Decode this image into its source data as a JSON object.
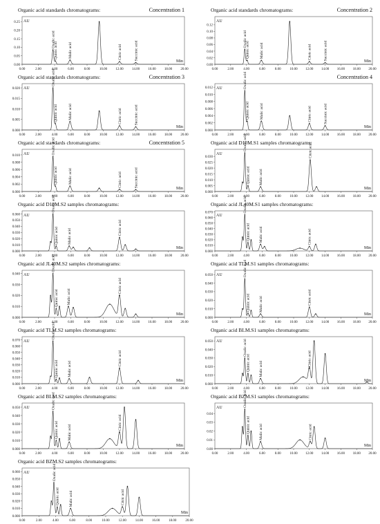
{
  "chart_data": [
    {
      "type": "line",
      "title": "Organic acid standards chromatograms:",
      "subtitle": "Concentration 1",
      "ylabel": "AU",
      "xlabel": "Min",
      "xlim": [
        0,
        20
      ],
      "ylim": [
        0,
        0.28
      ],
      "xticks": [
        "0.00",
        "2.00",
        "4.00",
        "6.00",
        "8.00",
        "10.00",
        "12.00",
        "14.00",
        "16.00",
        "18.00",
        "20.00"
      ],
      "yticks": [
        "0.00",
        "0.05",
        "0.10",
        "0.15",
        "0.20",
        "0.25"
      ],
      "peaks": [
        {
          "name": "Oxalic acid",
          "x": 3.8,
          "y": 0.085
        },
        {
          "name": "Quinic acid",
          "x": 4.1,
          "y": 0.02
        },
        {
          "name": "Malic acid",
          "x": 5.9,
          "y": 0.025
        },
        {
          "name": "",
          "x": 9.5,
          "y": 0.25
        },
        {
          "name": "Citric acid",
          "x": 12.0,
          "y": 0.015
        },
        {
          "name": "Succinic acid",
          "x": 14.0,
          "y": 0.01
        }
      ]
    },
    {
      "type": "line",
      "title": "Organic acid standards chromatograms:",
      "subtitle": "Concentration 2",
      "ylabel": "AU",
      "xlabel": "Min",
      "xlim": [
        0,
        20
      ],
      "ylim": [
        0,
        0.145
      ],
      "xticks": [
        "0.00",
        "2.00",
        "4.00",
        "6.00",
        "8.00",
        "10.00",
        "12.00",
        "14.00",
        "16.00",
        "18.00",
        "20.00"
      ],
      "yticks": [
        "0.00",
        "0.02",
        "0.04",
        "0.06",
        "0.08",
        "0.10",
        "0.12"
      ],
      "peaks": [
        {
          "name": "Oxalic acid",
          "x": 3.8,
          "y": 0.045
        },
        {
          "name": "Quinic acid",
          "x": 4.1,
          "y": 0.012
        },
        {
          "name": "Malic acid",
          "x": 5.9,
          "y": 0.012
        },
        {
          "name": "",
          "x": 9.5,
          "y": 0.13
        },
        {
          "name": "Citric acid",
          "x": 12.0,
          "y": 0.008
        },
        {
          "name": "Succinic acid",
          "x": 14.0,
          "y": 0.005
        }
      ]
    },
    {
      "type": "line",
      "title": "Organic acid standards chromatograms:",
      "subtitle": "Concentration 3",
      "ylabel": "AU",
      "xlabel": "Min",
      "xlim": [
        0,
        20
      ],
      "ylim": [
        0,
        0.022
      ],
      "xticks": [
        "0.00",
        "2.00",
        "4.00",
        "6.00",
        "8.00",
        "10.00",
        "12.00",
        "14.00",
        "16.00",
        "18.00",
        "20.00"
      ],
      "yticks": [
        "0.000",
        "0.005",
        "0.010",
        "0.015",
        "0.020"
      ],
      "peaks": [
        {
          "name": "Oxalic acid",
          "x": 3.8,
          "y": 0.02
        },
        {
          "name": "Quinic acid",
          "x": 4.1,
          "y": 0.003
        },
        {
          "name": "Malic acid",
          "x": 5.9,
          "y": 0.004
        },
        {
          "name": "",
          "x": 9.5,
          "y": 0.009
        },
        {
          "name": "Citric acid",
          "x": 12.0,
          "y": 0.002
        },
        {
          "name": "Succinic acid",
          "x": 14.0,
          "y": 0.0015
        }
      ]
    },
    {
      "type": "line",
      "title": "",
      "subtitle": "Concentration 4",
      "ylabel": "AU",
      "xlabel": "Min",
      "xlim": [
        0,
        20
      ],
      "ylim": [
        0,
        0.013
      ],
      "xticks": [
        "0.00",
        "2.00",
        "4.00",
        "6.00",
        "8.00",
        "10.00",
        "12.00",
        "14.00",
        "16.00",
        "18.00",
        "20.00"
      ],
      "yticks": [
        "0.000",
        "0.002",
        "0.004",
        "0.006",
        "0.008",
        "0.010",
        "0.012"
      ],
      "peaks": [
        {
          "name": "Oxalic acid",
          "x": 3.8,
          "y": 0.011
        },
        {
          "name": "Quinic acid",
          "x": 4.1,
          "y": 0.0025
        },
        {
          "name": "Malic acid",
          "x": 5.9,
          "y": 0.0025
        },
        {
          "name": "",
          "x": 9.5,
          "y": 0.004
        },
        {
          "name": "Citric acid",
          "x": 12.0,
          "y": 0.0018
        },
        {
          "name": "Succinic acid",
          "x": 14.0,
          "y": 0.0012
        }
      ]
    },
    {
      "type": "line",
      "title": "Organic acid standards chromatograms:",
      "subtitle": "Concentration 5",
      "ylabel": "AU",
      "xlabel": "Min",
      "xlim": [
        0,
        20
      ],
      "ylim": [
        0,
        0.0115
      ],
      "xticks": [
        "0.00",
        "2.00",
        "4.00",
        "6.00",
        "8.00",
        "10.00",
        "12.00",
        "14.00",
        "16.00",
        "18.00",
        "20.00"
      ],
      "yticks": [
        "0.000",
        "0.002",
        "0.004",
        "0.006",
        "0.008",
        "0.010"
      ],
      "peaks": [
        {
          "name": "Oxalic acid",
          "x": 3.8,
          "y": 0.0095
        },
        {
          "name": "Quinic acid",
          "x": 4.1,
          "y": 0.0015
        },
        {
          "name": "Malic acid",
          "x": 5.9,
          "y": 0.0015
        },
        {
          "name": "",
          "x": 9.5,
          "y": 0.0009
        },
        {
          "name": "Citric acid",
          "x": 12.0,
          "y": 0.0006
        },
        {
          "name": "Succinic acid",
          "x": 14.0,
          "y": 0.0005
        }
      ]
    },
    {
      "type": "line",
      "title": "Organic acid D10M.S1 samples chromatograms:",
      "subtitle": "",
      "ylabel": "AU",
      "xlabel": "Min",
      "xlim": [
        0,
        20
      ],
      "ylim": [
        0,
        0.036
      ],
      "xticks": [
        "0.00",
        "2.00",
        "4.00",
        "6.00",
        "8.00",
        "10.00",
        "12.00",
        "14.00",
        "16.00",
        "18.00",
        "20.00"
      ],
      "yticks": [
        "0.000",
        "0.005",
        "0.010",
        "0.015",
        "0.020",
        "0.025",
        "0.030"
      ],
      "peaks": [
        {
          "name": "",
          "x": 3.5,
          "y": 0.008
        },
        {
          "name": "Oxalic acid",
          "x": 3.8,
          "y": 0.033
        },
        {
          "name": "Quinic acid",
          "x": 4.2,
          "y": 0.005
        },
        {
          "name": "Malic acid",
          "x": 5.8,
          "y": 0.004
        },
        {
          "name": "Citric acid",
          "x": 12.1,
          "y": 0.027
        },
        {
          "name": "",
          "x": 12.9,
          "y": 0.004
        }
      ]
    },
    {
      "type": "line",
      "title": "Organic acid D10M.S2 samples chromatograms:",
      "subtitle": "",
      "ylabel": "AU",
      "xlabel": "Min",
      "xlim": [
        0,
        20
      ],
      "ylim": [
        0,
        0.065
      ],
      "xticks": [
        "0.00",
        "2.00",
        "4.00",
        "6.00",
        "8.00",
        "10.00",
        "12.00",
        "14.00",
        "16.00",
        "18.00",
        "20.00"
      ],
      "yticks": [
        "0.000",
        "0.010",
        "0.020",
        "0.030",
        "0.040",
        "0.050",
        "0.060"
      ],
      "peaks": [
        {
          "name": "",
          "x": 3.5,
          "y": 0.015
        },
        {
          "name": "Oxalic acid",
          "x": 3.8,
          "y": 0.06
        },
        {
          "name": "Quinic acid",
          "x": 4.2,
          "y": 0.008
        },
        {
          "name": "Malic acid",
          "x": 5.8,
          "y": 0.008
        },
        {
          "name": "",
          "x": 6.3,
          "y": 0.006
        },
        {
          "name": "",
          "x": 8.3,
          "y": 0.005
        },
        {
          "name": "Citric acid",
          "x": 12.0,
          "y": 0.022
        },
        {
          "name": "",
          "x": 12.7,
          "y": 0.01
        },
        {
          "name": "",
          "x": 14.0,
          "y": 0.003
        }
      ]
    },
    {
      "type": "line",
      "title": "Organic acid JL40M.S1 samples chromatograms:",
      "subtitle": "",
      "ylabel": "AU",
      "xlabel": "Min",
      "xlim": [
        0,
        20
      ],
      "ylim": [
        0,
        0.072
      ],
      "xticks": [
        "0.00",
        "2.00",
        "4.00",
        "6.00",
        "8.00",
        "10.00",
        "12.00",
        "14.00",
        "16.00",
        "18.00",
        "20.00"
      ],
      "yticks": [
        "0.000",
        "0.010",
        "0.020",
        "0.030",
        "0.040",
        "0.050",
        "0.060",
        "0.070"
      ],
      "peaks": [
        {
          "name": "",
          "x": 3.5,
          "y": 0.025
        },
        {
          "name": "Oxalic acid",
          "x": 3.8,
          "y": 0.065
        },
        {
          "name": "Quinic acid",
          "x": 4.2,
          "y": 0.015
        },
        {
          "name": "",
          "x": 4.6,
          "y": 0.02
        },
        {
          "name": "Malic acid",
          "x": 5.8,
          "y": 0.012
        },
        {
          "name": "",
          "x": 6.3,
          "y": 0.008
        },
        {
          "name": "",
          "x": 10.8,
          "y": 0.005
        },
        {
          "name": "Citric acid",
          "x": 12.0,
          "y": 0.008
        },
        {
          "name": "",
          "x": 12.8,
          "y": 0.012
        }
      ]
    },
    {
      "type": "line",
      "title": "Organic acid JL40M.S2 samples chromatograms:",
      "subtitle": "",
      "ylabel": "AU",
      "xlabel": "Min",
      "xlim": [
        0,
        20
      ],
      "ylim": [
        0,
        0.043
      ],
      "xticks": [
        "0.00",
        "2.00",
        "4.00",
        "6.00",
        "8.00",
        "10.00",
        "12.00",
        "14.00",
        "16.00",
        "18.00",
        "20.00"
      ],
      "yticks": [
        "0.000",
        "0.010",
        "0.020",
        "0.030",
        "0.040"
      ],
      "peaks": [
        {
          "name": "",
          "x": 3.5,
          "y": 0.02
        },
        {
          "name": "Oxalic acid",
          "x": 3.8,
          "y": 0.04
        },
        {
          "name": "Quinic acid",
          "x": 4.2,
          "y": 0.008
        },
        {
          "name": "",
          "x": 4.6,
          "y": 0.01
        },
        {
          "name": "Malic acid",
          "x": 5.7,
          "y": 0.01
        },
        {
          "name": "",
          "x": 6.3,
          "y": 0.009
        },
        {
          "name": "",
          "x": 10.8,
          "y": 0.012
        },
        {
          "name": "Citric acid",
          "x": 12.0,
          "y": 0.02
        },
        {
          "name": "",
          "x": 12.7,
          "y": 0.008
        },
        {
          "name": "",
          "x": 14.0,
          "y": 0.003
        }
      ]
    },
    {
      "type": "line",
      "title": "Organic acid TLM.S1 samples chromatograms:",
      "subtitle": "",
      "ylabel": "AU",
      "xlabel": "Min",
      "xlim": [
        0,
        20
      ],
      "ylim": [
        0,
        0.055
      ],
      "xticks": [
        "0.00",
        "2.00",
        "4.00",
        "6.00",
        "8.00",
        "10.00",
        "12.00",
        "14.00",
        "16.00",
        "18.00",
        "20.00"
      ],
      "yticks": [
        "0.000",
        "0.010",
        "0.020",
        "0.030",
        "0.040",
        "0.050"
      ],
      "peaks": [
        {
          "name": "",
          "x": 3.5,
          "y": 0.01
        },
        {
          "name": "Oxalic acid",
          "x": 3.8,
          "y": 0.045
        },
        {
          "name": "Quinic acid",
          "x": 4.2,
          "y": 0.005
        },
        {
          "name": "",
          "x": 4.6,
          "y": 0.008
        },
        {
          "name": "Malic acid",
          "x": 5.8,
          "y": 0.004
        },
        {
          "name": "Citric acid",
          "x": 12.0,
          "y": 0.012
        },
        {
          "name": "",
          "x": 12.8,
          "y": 0.004
        }
      ]
    },
    {
      "type": "line",
      "title": "Organic acid TLM.S2 samples chromatograms:",
      "subtitle": "",
      "ylabel": "AU",
      "xlabel": "Min",
      "xlim": [
        0,
        20
      ],
      "ylim": [
        0,
        0.075
      ],
      "xticks": [
        "0.00",
        "2.00",
        "4.00",
        "6.00",
        "8.00",
        "10.00",
        "12.00",
        "14.00",
        "16.00",
        "18.00",
        "20.00"
      ],
      "yticks": [
        "0.000",
        "0.010",
        "0.020",
        "0.030",
        "0.040",
        "0.050",
        "0.060",
        "0.070"
      ],
      "peaks": [
        {
          "name": "",
          "x": 3.5,
          "y": 0.012
        },
        {
          "name": "Oxalic acid",
          "x": 3.8,
          "y": 0.068
        },
        {
          "name": "Quinic acid",
          "x": 4.2,
          "y": 0.007
        },
        {
          "name": "",
          "x": 4.6,
          "y": 0.009
        },
        {
          "name": "Malic acid",
          "x": 5.8,
          "y": 0.008
        },
        {
          "name": "",
          "x": 8.3,
          "y": 0.01
        },
        {
          "name": "Citric acid",
          "x": 12.0,
          "y": 0.025
        },
        {
          "name": "",
          "x": 14.3,
          "y": 0.005
        }
      ]
    },
    {
      "type": "line",
      "title": "Organic acid BLM.S1 samples chromatograms:",
      "subtitle": "",
      "ylabel": "AU",
      "xlabel": "Min",
      "xlim": [
        0,
        20
      ],
      "ylim": [
        0,
        0.055
      ],
      "xticks": [
        "0.00",
        "2.00",
        "4.00",
        "6.00",
        "8.00",
        "10.00",
        "12.00",
        "14.00",
        "16.00",
        "18.00",
        "20.00"
      ],
      "yticks": [
        "0.000",
        "0.010",
        "0.020",
        "0.030",
        "0.040",
        "0.050"
      ],
      "peaks": [
        {
          "name": "",
          "x": 3.5,
          "y": 0.012
        },
        {
          "name": "Oxalic acid",
          "x": 3.8,
          "y": 0.03
        },
        {
          "name": "Quinic acid",
          "x": 4.2,
          "y": 0.012
        },
        {
          "name": "",
          "x": 4.6,
          "y": 0.01
        },
        {
          "name": "Malic acid",
          "x": 5.8,
          "y": 0.006
        },
        {
          "name": "",
          "x": 11.2,
          "y": 0.008
        },
        {
          "name": "Citric acid",
          "x": 12.0,
          "y": 0.018
        },
        {
          "name": "",
          "x": 12.6,
          "y": 0.05
        },
        {
          "name": "",
          "x": 14.0,
          "y": 0.035
        },
        {
          "name": "",
          "x": 19.3,
          "y": 0.002
        }
      ]
    },
    {
      "type": "line",
      "title": "Organic acid BLM.S2 samples chromatograms:",
      "subtitle": "",
      "ylabel": "AU",
      "xlabel": "Min",
      "xlim": [
        0,
        20
      ],
      "ylim": [
        0,
        0.055
      ],
      "xticks": [
        "0.00",
        "2.00",
        "4.00",
        "6.00",
        "8.00",
        "10.00",
        "12.00",
        "14.00",
        "16.00",
        "18.00",
        "20.00"
      ],
      "yticks": [
        "0.000",
        "0.010",
        "0.020",
        "0.030",
        "0.040",
        "0.050"
      ],
      "peaks": [
        {
          "name": "",
          "x": 3.5,
          "y": 0.015
        },
        {
          "name": "Oxalic acid",
          "x": 3.8,
          "y": 0.045
        },
        {
          "name": "Quinic acid",
          "x": 4.2,
          "y": 0.01
        },
        {
          "name": "",
          "x": 4.6,
          "y": 0.012
        },
        {
          "name": "Malic acid",
          "x": 5.8,
          "y": 0.008
        },
        {
          "name": "",
          "x": 10.8,
          "y": 0.012
        },
        {
          "name": "Citric acid",
          "x": 12.0,
          "y": 0.02
        },
        {
          "name": "",
          "x": 12.6,
          "y": 0.05
        },
        {
          "name": "",
          "x": 14.0,
          "y": 0.035
        }
      ]
    },
    {
      "type": "line",
      "title": "Organic acid BZM.S1 samples chromatograms:",
      "subtitle": "",
      "ylabel": "AU",
      "xlabel": "Min",
      "xlim": [
        0,
        20
      ],
      "ylim": [
        0,
        0.052
      ],
      "xticks": [
        "0.00",
        "2.00",
        "4.00",
        "6.00",
        "8.00",
        "10.00",
        "12.00",
        "14.00",
        "16.00",
        "18.00",
        "20.00"
      ],
      "yticks": [
        "0.00",
        "0.01",
        "0.02",
        "0.03",
        "0.04"
      ],
      "peaks": [
        {
          "name": "",
          "x": 3.5,
          "y": 0.025
        },
        {
          "name": "Oxalic acid",
          "x": 3.8,
          "y": 0.045
        },
        {
          "name": "Quinic acid",
          "x": 4.2,
          "y": 0.015
        },
        {
          "name": "",
          "x": 4.6,
          "y": 0.02
        },
        {
          "name": "Malic acid",
          "x": 5.8,
          "y": 0.008
        },
        {
          "name": "",
          "x": 10.8,
          "y": 0.01
        },
        {
          "name": "Citric acid",
          "x": 12.1,
          "y": 0.008
        },
        {
          "name": "",
          "x": 12.6,
          "y": 0.025
        },
        {
          "name": "",
          "x": 14.0,
          "y": 0.012
        }
      ]
    },
    {
      "type": "line",
      "title": "Organic acid BZM.S2 samples chromatograms:",
      "subtitle": "",
      "ylabel": "AU",
      "xlabel": "Min",
      "xlim": [
        0,
        20
      ],
      "ylim": [
        0,
        0.065
      ],
      "xticks": [
        "0.00",
        "2.00",
        "4.00",
        "6.00",
        "8.00",
        "10.00",
        "12.00",
        "14.00",
        "16.00",
        "18.00",
        "20.00"
      ],
      "yticks": [
        "0.000",
        "0.010",
        "0.020",
        "0.030",
        "0.040",
        "0.050",
        "0.060"
      ],
      "peaks": [
        {
          "name": "",
          "x": 3.5,
          "y": 0.02
        },
        {
          "name": "Oxalic acid",
          "x": 3.8,
          "y": 0.045
        },
        {
          "name": "Quinic acid",
          "x": 4.2,
          "y": 0.012
        },
        {
          "name": "",
          "x": 4.6,
          "y": 0.015
        },
        {
          "name": "Malic acid",
          "x": 5.8,
          "y": 0.01
        },
        {
          "name": "",
          "x": 10.8,
          "y": 0.01
        },
        {
          "name": "Citric acid",
          "x": 12.0,
          "y": 0.012
        },
        {
          "name": "",
          "x": 12.6,
          "y": 0.04
        },
        {
          "name": "",
          "x": 14.0,
          "y": 0.025
        }
      ]
    }
  ]
}
